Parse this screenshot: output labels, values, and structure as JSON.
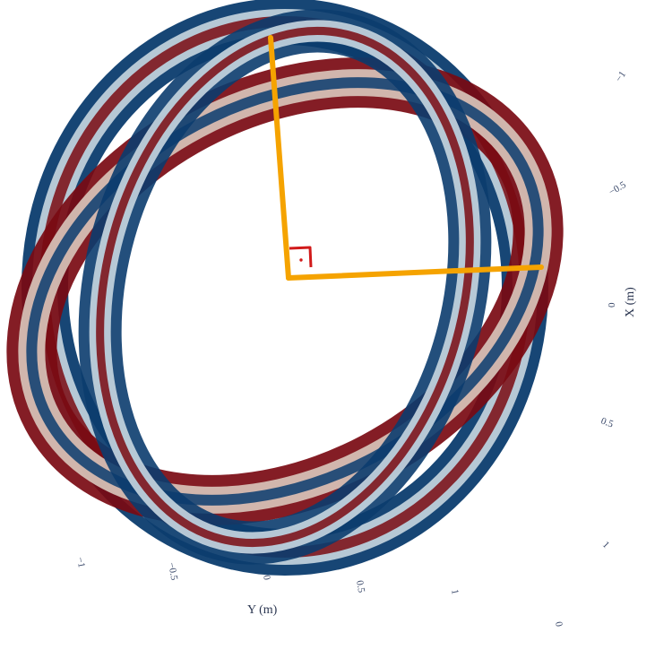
{
  "chart_data": {
    "type": "surface3d",
    "description_of_surface": "two interlocked tori",
    "colorscale": [
      "#7a0a12",
      "#c8d6e0",
      "#0b3c6e"
    ],
    "marker_colors": {
      "orange_lines": "#f5a300",
      "red_marker": "#d11a1a"
    },
    "axes": {
      "x": {
        "label": "X (m)",
        "ticks": [
          "−1",
          "−0.5",
          "0",
          "0.5",
          "1"
        ]
      },
      "y": {
        "label": "Y (m)",
        "ticks": [
          "−1",
          "−0.5",
          "0",
          "0.5",
          "1"
        ]
      },
      "z": {
        "ticks": [
          "0"
        ]
      }
    }
  }
}
